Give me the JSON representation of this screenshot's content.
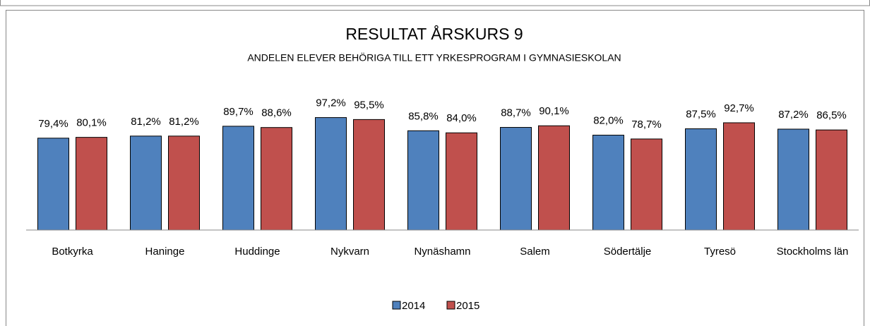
{
  "chart_data": {
    "type": "bar",
    "title": "RESULTAT ÅRSKURS 9",
    "subtitle": "ANDELEN ELEVER BEHÖRIGA TILL ETT YRKESPROGRAM I GYMNASIESKOLAN",
    "categories": [
      "Botkyrka",
      "Haninge",
      "Huddinge",
      "Nykvarn",
      "Nynäshamn",
      "Salem",
      "Södertälje",
      "Tyresö",
      "Stockholms län"
    ],
    "series": [
      {
        "name": "2014",
        "color": "#4f81bd",
        "values": [
          79.4,
          81.2,
          89.7,
          97.2,
          85.8,
          88.7,
          82.0,
          87.5,
          87.2
        ],
        "value_labels": [
          "79,4%",
          "81,2%",
          "89,7%",
          "97,2%",
          "85,8%",
          "88,7%",
          "82,0%",
          "87,5%",
          "87,2%"
        ]
      },
      {
        "name": "2015",
        "color": "#c0504d",
        "values": [
          80.1,
          81.2,
          88.6,
          95.5,
          84.0,
          90.1,
          78.7,
          92.7,
          86.5
        ],
        "value_labels": [
          "80,1%",
          "81,2%",
          "88,6%",
          "95,5%",
          "84,0%",
          "90,1%",
          "78,7%",
          "92,7%",
          "86,5%"
        ]
      }
    ],
    "ylim": [
      0,
      100
    ],
    "legend": "bottom"
  }
}
